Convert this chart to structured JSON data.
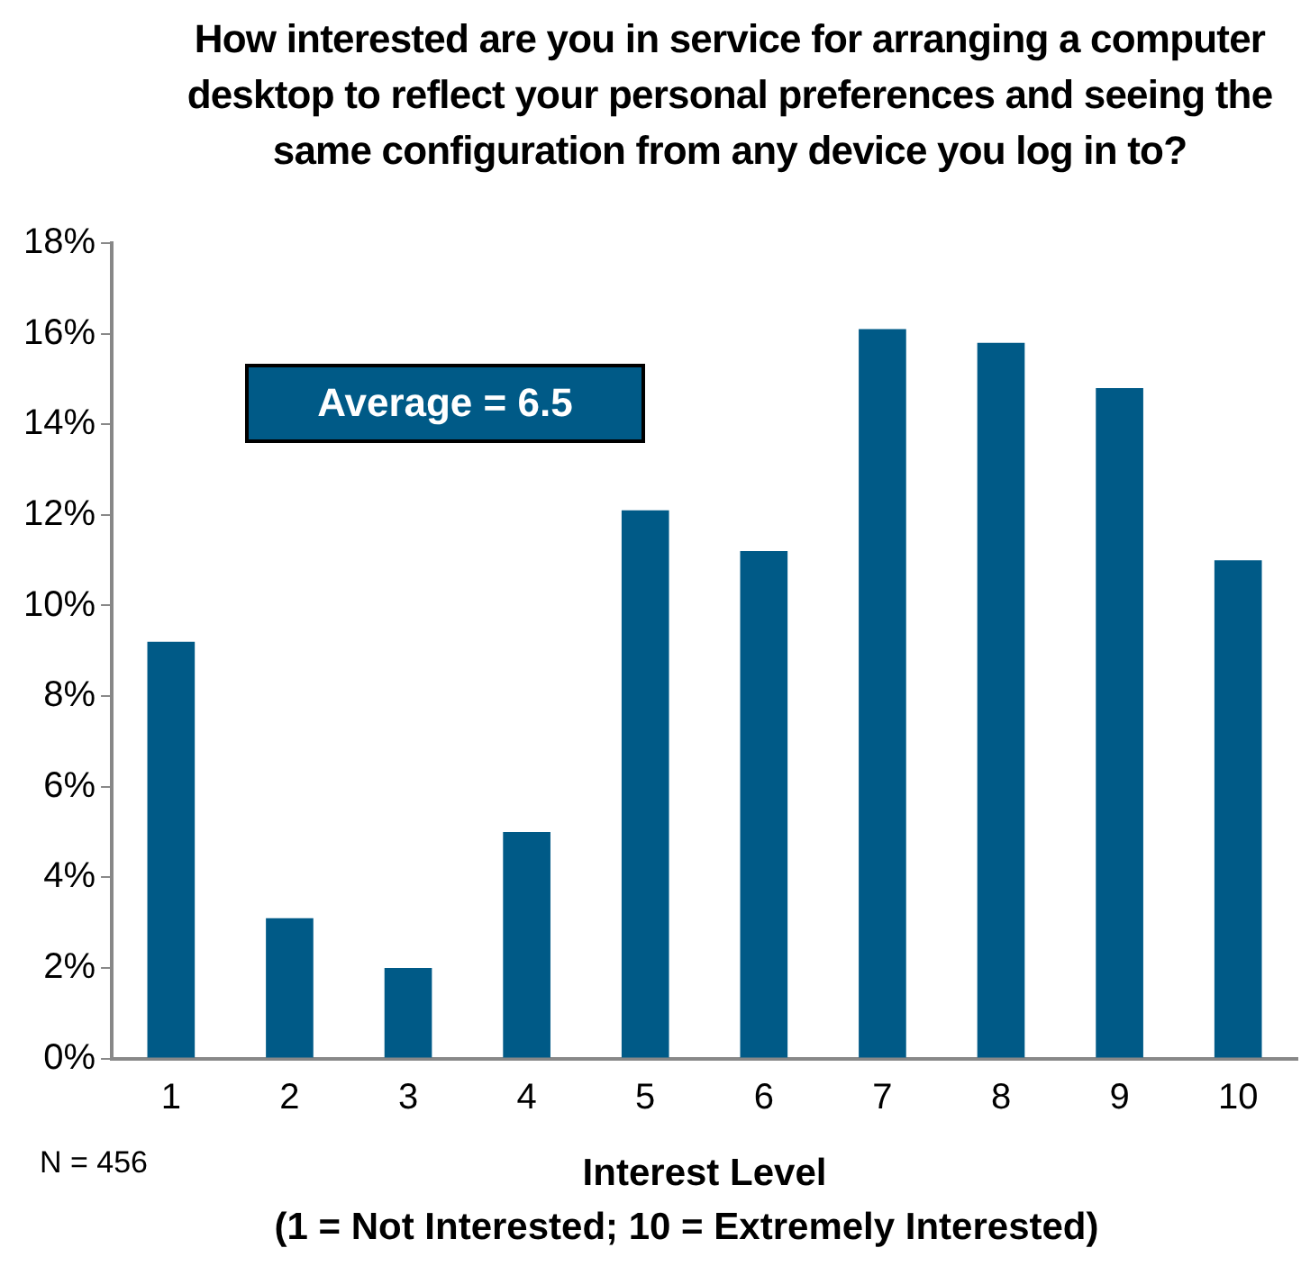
{
  "chart_data": {
    "type": "bar",
    "title": "How interested are you in service for arranging a computer desktop to reflect your personal preferences and seeing the same configuration from any device you log in to?",
    "xlabel": "Interest Level",
    "categories": [
      "1",
      "2",
      "3",
      "4",
      "5",
      "6",
      "7",
      "8",
      "9",
      "10"
    ],
    "values": [
      9.2,
      3.1,
      2.0,
      5.0,
      12.1,
      11.2,
      16.1,
      15.8,
      14.8,
      11.0
    ],
    "color": "#005a87",
    "ylim": [
      0,
      18
    ],
    "yticks": [
      {
        "value": 0,
        "label": "0%"
      },
      {
        "value": 2,
        "label": "2%"
      },
      {
        "value": 4,
        "label": "4%"
      },
      {
        "value": 6,
        "label": "6%"
      },
      {
        "value": 8,
        "label": "8%"
      },
      {
        "value": 10,
        "label": "10%"
      },
      {
        "value": 12,
        "label": "12%"
      },
      {
        "value": 14,
        "label": "14%"
      },
      {
        "value": 16,
        "label": "16%"
      },
      {
        "value": 18,
        "label": "18%"
      }
    ],
    "annotations": [
      "Average = 6.5",
      "N = 456",
      "(1 = Not Interested; 10 = Extremely Interested)"
    ]
  }
}
